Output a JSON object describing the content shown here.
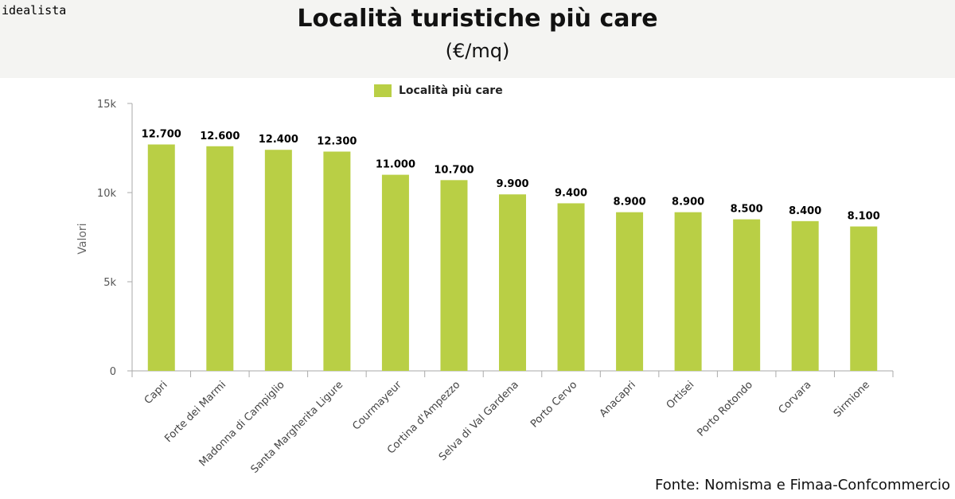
{
  "brand": "idealista",
  "header": {
    "title": "Località turistiche più care",
    "subtitle": "(€/mq)"
  },
  "legend": {
    "label": "Località più care",
    "color": "#b9cf45"
  },
  "source": "Fonte: Nomisma e Fimaa-Confcommercio",
  "chart_data": {
    "type": "bar",
    "ylabel": "Valori",
    "ylim": [
      0,
      15000
    ],
    "yticks": [
      {
        "value": 0,
        "label": "0"
      },
      {
        "value": 5000,
        "label": "5k"
      },
      {
        "value": 10000,
        "label": "10k"
      },
      {
        "value": 15000,
        "label": "15k"
      }
    ],
    "grid": false,
    "legend_position": "top",
    "categories": [
      "Capri",
      "Forte dei Marmi",
      "Madonna di Campiglio",
      "Santa Margherita Ligure",
      "Courmayeur",
      "Cortina d'Ampezzo",
      "Selva di Val Gardena",
      "Porto Cervo",
      "Anacapri",
      "Ortisei",
      "Porto Rotondo",
      "Corvara",
      "Sirmione"
    ],
    "series": [
      {
        "name": "Località più care",
        "color": "#b9cf45",
        "values": [
          12700,
          12600,
          12400,
          12300,
          11000,
          10700,
          9900,
          9400,
          8900,
          8900,
          8500,
          8400,
          8100
        ],
        "labels": [
          "12.700",
          "12.600",
          "12.400",
          "12.300",
          "11.000",
          "10.700",
          "9.900",
          "9.400",
          "8.900",
          "8.900",
          "8.500",
          "8.400",
          "8.100"
        ]
      }
    ]
  }
}
